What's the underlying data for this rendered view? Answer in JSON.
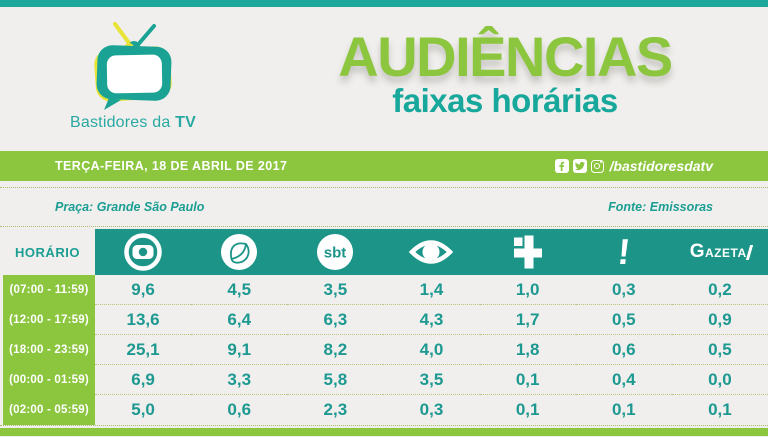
{
  "brand": {
    "name_prefix": "Bastidores da ",
    "name_bold": "TV"
  },
  "title": {
    "main": "AUDIÊNCIAS",
    "subtitle": "faixas horárias"
  },
  "date_bar": {
    "date": "TERÇA-FEIRA, 18 DE ABRIL DE 2017",
    "social_handle": "/bastidoresdatv"
  },
  "meta": {
    "place": "Praça: Grande São Paulo",
    "source": "Fonte: Emissoras"
  },
  "table": {
    "time_header": "HORÁRIO",
    "networks": [
      "Globo",
      "Record",
      "SBT",
      "Band",
      "TV Cultura",
      "RedeTV!",
      "TV Gazeta"
    ],
    "logos": {
      "sbt_text": "sbt",
      "redetv_text": "!",
      "gazeta_text": "GAZETA"
    },
    "rows": [
      {
        "time": "(07:00 - 11:59)",
        "values": [
          "9,6",
          "4,5",
          "3,5",
          "1,4",
          "1,0",
          "0,3",
          "0,2"
        ]
      },
      {
        "time": "(12:00 - 17:59)",
        "values": [
          "13,6",
          "6,4",
          "6,3",
          "4,3",
          "1,7",
          "0,5",
          "0,9"
        ]
      },
      {
        "time": "(18:00 - 23:59)",
        "values": [
          "25,1",
          "9,1",
          "8,2",
          "4,0",
          "1,8",
          "0,6",
          "0,5"
        ]
      },
      {
        "time": "(00:00 - 01:59)",
        "values": [
          "6,9",
          "3,3",
          "5,8",
          "3,5",
          "0,1",
          "0,4",
          "0,0"
        ]
      },
      {
        "time": "(02:00 - 05:59)",
        "values": [
          "5,0",
          "0,6",
          "2,3",
          "0,3",
          "0,1",
          "0,1",
          "0,1"
        ]
      }
    ]
  },
  "chart_data": {
    "type": "table",
    "title": "AUDIÊNCIAS — faixas horárias",
    "date": "TERÇA-FEIRA, 18 DE ABRIL DE 2017",
    "place": "Grande São Paulo",
    "source": "Emissoras",
    "columns": [
      "HORÁRIO",
      "Globo",
      "Record",
      "SBT",
      "Band",
      "TV Cultura",
      "RedeTV!",
      "TV Gazeta"
    ],
    "rows": [
      [
        "(07:00 - 11:59)",
        9.6,
        4.5,
        3.5,
        1.4,
        1.0,
        0.3,
        0.2
      ],
      [
        "(12:00 - 17:59)",
        13.6,
        6.4,
        6.3,
        4.3,
        1.7,
        0.5,
        0.9
      ],
      [
        "(18:00 - 23:59)",
        25.1,
        9.1,
        8.2,
        4.0,
        1.8,
        0.6,
        0.5
      ],
      [
        "(00:00 - 01:59)",
        6.9,
        3.3,
        5.8,
        3.5,
        0.1,
        0.4,
        0.0
      ],
      [
        "(02:00 - 05:59)",
        5.0,
        0.6,
        2.3,
        0.3,
        0.1,
        0.1,
        0.1
      ]
    ]
  },
  "colors": {
    "green": "#8cc63e",
    "teal_bar": "#1ca89a",
    "teal_header": "#1d9488",
    "teal_text": "#1b9e93",
    "background": "#f0efed"
  }
}
